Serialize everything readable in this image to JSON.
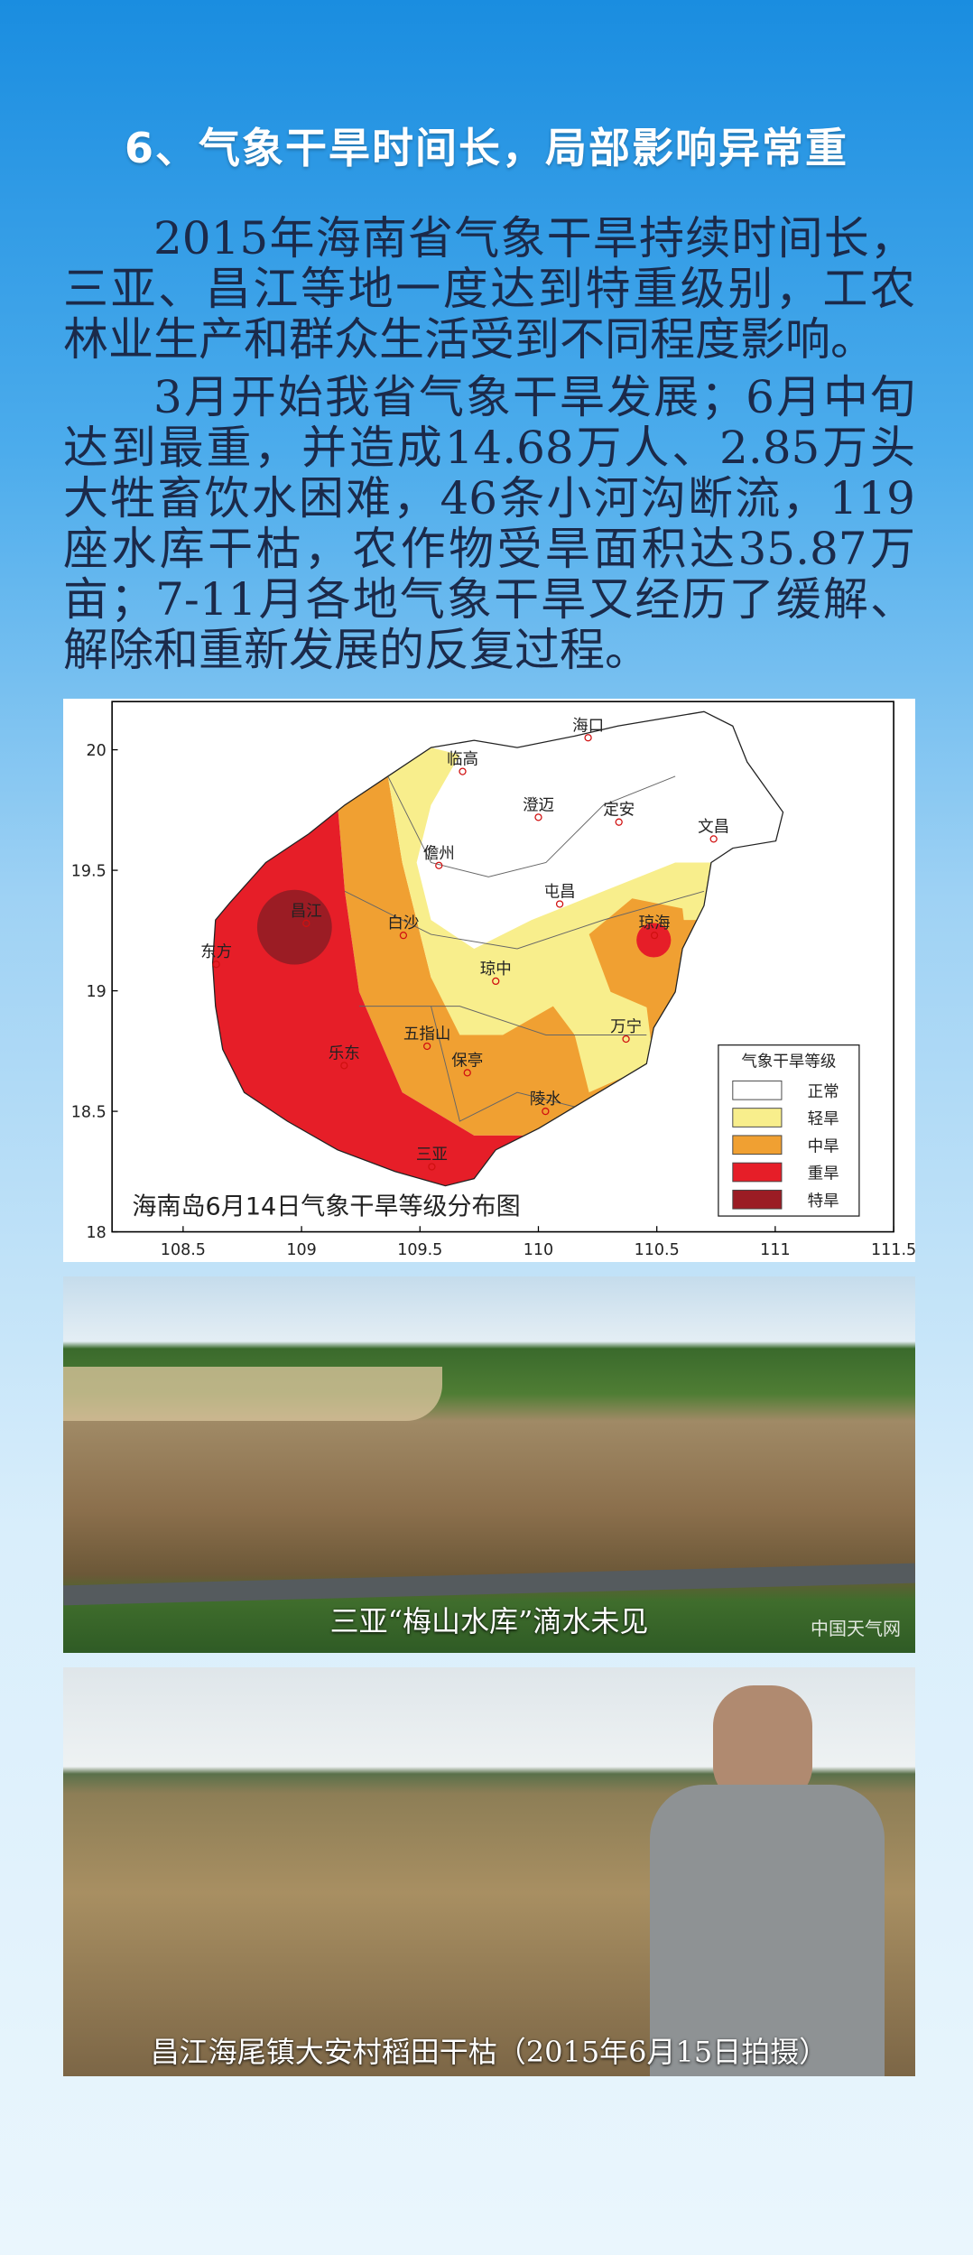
{
  "title": "6、气象干旱时间长，局部影响异常重",
  "paragraphs": [
    "2015年海南省气象干旱持续时间长，三亚、昌江等地一度达到特重级别，工农林业生产和群众生活受到不同程度影响。",
    "3月开始我省气象干旱发展；6月中旬达到最重，并造成14.68万人、2.85万头大牲畜饮水困难，46条小河沟断流，119座水库干枯，农作物受旱面积达35.87万亩；7-11月各地气象干旱又经历了缓解、解除和重新发展的反复过程。"
  ],
  "map": {
    "title": "海南岛6月14日气象干旱等级分布图",
    "xlim": [
      108.2,
      111.5
    ],
    "ylim": [
      18,
      20.2
    ],
    "xticks": [
      108.5,
      109,
      109.5,
      110,
      110.5,
      111,
      111.5
    ],
    "yticks": [
      18,
      18.5,
      19,
      19.5,
      20
    ],
    "legend": {
      "title": "气象干旱等级",
      "items": [
        {
          "label": "正常",
          "color": "#ffffff"
        },
        {
          "label": "轻旱",
          "color": "#f8ee8c"
        },
        {
          "label": "中旱",
          "color": "#f0a032"
        },
        {
          "label": "重旱",
          "color": "#e61e28"
        },
        {
          "label": "特旱",
          "color": "#9b1c24"
        }
      ]
    },
    "cities": [
      {
        "name": "海口",
        "lon": 110.21,
        "lat": 20.05
      },
      {
        "name": "临高",
        "lon": 109.68,
        "lat": 19.91
      },
      {
        "name": "澄迈",
        "lon": 110.0,
        "lat": 19.72
      },
      {
        "name": "定安",
        "lon": 110.34,
        "lat": 19.7
      },
      {
        "name": "文昌",
        "lon": 110.74,
        "lat": 19.63
      },
      {
        "name": "儋州",
        "lon": 109.58,
        "lat": 19.52
      },
      {
        "name": "屯昌",
        "lon": 110.09,
        "lat": 19.36
      },
      {
        "name": "白沙",
        "lon": 109.43,
        "lat": 19.23
      },
      {
        "name": "琼海",
        "lon": 110.49,
        "lat": 19.23
      },
      {
        "name": "昌江",
        "lon": 109.02,
        "lat": 19.28
      },
      {
        "name": "东方",
        "lon": 108.64,
        "lat": 19.11
      },
      {
        "name": "琼中",
        "lon": 109.82,
        "lat": 19.04
      },
      {
        "name": "乐东",
        "lon": 109.18,
        "lat": 18.69
      },
      {
        "name": "五指山",
        "lon": 109.53,
        "lat": 18.77
      },
      {
        "name": "万宁",
        "lon": 110.37,
        "lat": 18.8
      },
      {
        "name": "保亭",
        "lon": 109.7,
        "lat": 18.66
      },
      {
        "name": "陵水",
        "lon": 110.03,
        "lat": 18.5
      },
      {
        "name": "三亚",
        "lon": 109.55,
        "lat": 18.27
      }
    ]
  },
  "photos": [
    {
      "caption": "三亚“梅山水库”滴水未见",
      "credit": "中国天气网"
    },
    {
      "caption": "昌江海尾镇大安村稻田干枯（2015年6月15日拍摄）"
    }
  ]
}
